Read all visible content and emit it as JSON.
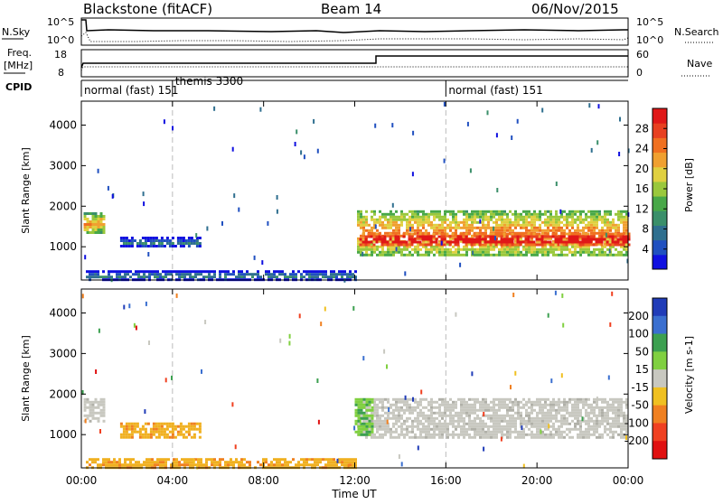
{
  "header": {
    "station": "Blackstone (fitACF)",
    "beam": "Beam 14",
    "date": "06/Nov/2015"
  },
  "top_panels": {
    "nsky_label": "N.Sky",
    "nsky_ticks": [
      "10^5",
      "10^0"
    ],
    "nsearch_label": "N.Search",
    "nsearch_ticks": [
      "10^5",
      "10^0"
    ],
    "freq_label_1": "Freq.",
    "freq_label_2": "[MHz]",
    "freq_ticks": [
      "18",
      "8"
    ],
    "nave_label": "Nave",
    "nave_ticks": [
      "60",
      "0"
    ],
    "cpid_label": "CPID",
    "cpid_segments": [
      {
        "start_h": 0.0,
        "label": "normal (fast) 151"
      },
      {
        "start_h": 4.0,
        "label": "themis 3300"
      },
      {
        "start_h": 16.0,
        "label": "normal (fast) 151"
      }
    ]
  },
  "chart_data": [
    {
      "type": "heatmap",
      "name": "power-panel",
      "ylabel": "Slant Range [km]",
      "ylim": [
        180,
        4590
      ],
      "xlim_h": [
        0,
        24
      ],
      "y_ticks": [
        1000,
        2000,
        3000,
        4000
      ],
      "colorbar": {
        "label": "Power [dB]",
        "range": [
          0,
          32
        ],
        "ticks": [
          4,
          8,
          12,
          16,
          20,
          24,
          28
        ],
        "colors": [
          "#1010e0",
          "#2050c0",
          "#2f6f8f",
          "#3a8f6a",
          "#48a848",
          "#9ac83c",
          "#e0d040",
          "#f0a030",
          "#f07020",
          "#e84020",
          "#e01818"
        ]
      },
      "regions": [
        {
          "t": [
            0.1,
            1.0
          ],
          "r": [
            1350,
            1850
          ],
          "level": 0.55
        },
        {
          "t": [
            1.7,
            5.2
          ],
          "r": [
            1000,
            1250
          ],
          "level": 0.12
        },
        {
          "t": [
            0.2,
            12.0
          ],
          "r": [
            200,
            420
          ],
          "level": 0.15
        },
        {
          "t": [
            12.1,
            24.0
          ],
          "r": [
            800,
            1900
          ],
          "level": 0.6
        },
        {
          "t": [
            12.2,
            24.0
          ],
          "r": [
            1050,
            1350
          ],
          "level": 0.92
        }
      ]
    },
    {
      "type": "heatmap",
      "name": "velocity-panel",
      "ylabel": "Slant Range [km]",
      "ylim": [
        180,
        4590
      ],
      "xlim_h": [
        0,
        24
      ],
      "y_ticks": [
        1000,
        2000,
        3000,
        4000
      ],
      "colorbar": {
        "label": "Velocity [m s-1]",
        "ticks": [
          "200",
          "100",
          "50",
          "15",
          "-15",
          "-50",
          "-100",
          "-200"
        ],
        "colors": [
          "#203cb8",
          "#3a6fd0",
          "#3ca050",
          "#80d040",
          "#c8c8c0",
          "#f0c020",
          "#f08020",
          "#f04020",
          "#e01010"
        ]
      },
      "regions": [
        {
          "t": [
            0.1,
            1.0
          ],
          "r": [
            1300,
            1900
          ],
          "level": "low"
        },
        {
          "t": [
            1.7,
            5.2
          ],
          "r": [
            950,
            1300
          ],
          "level": "orange"
        },
        {
          "t": [
            0.2,
            12.0
          ],
          "r": [
            200,
            420
          ],
          "level": "orange"
        },
        {
          "t": [
            12.1,
            24.0
          ],
          "r": [
            900,
            1900
          ],
          "level": "low"
        },
        {
          "t": [
            12.0,
            12.8
          ],
          "r": [
            1000,
            1900
          ],
          "level": "green"
        }
      ]
    }
  ],
  "x_ticks": [
    "00:00",
    "04:00",
    "08:00",
    "12:00",
    "16:00",
    "20:00",
    "00:00"
  ],
  "xlabel": "Time UT"
}
